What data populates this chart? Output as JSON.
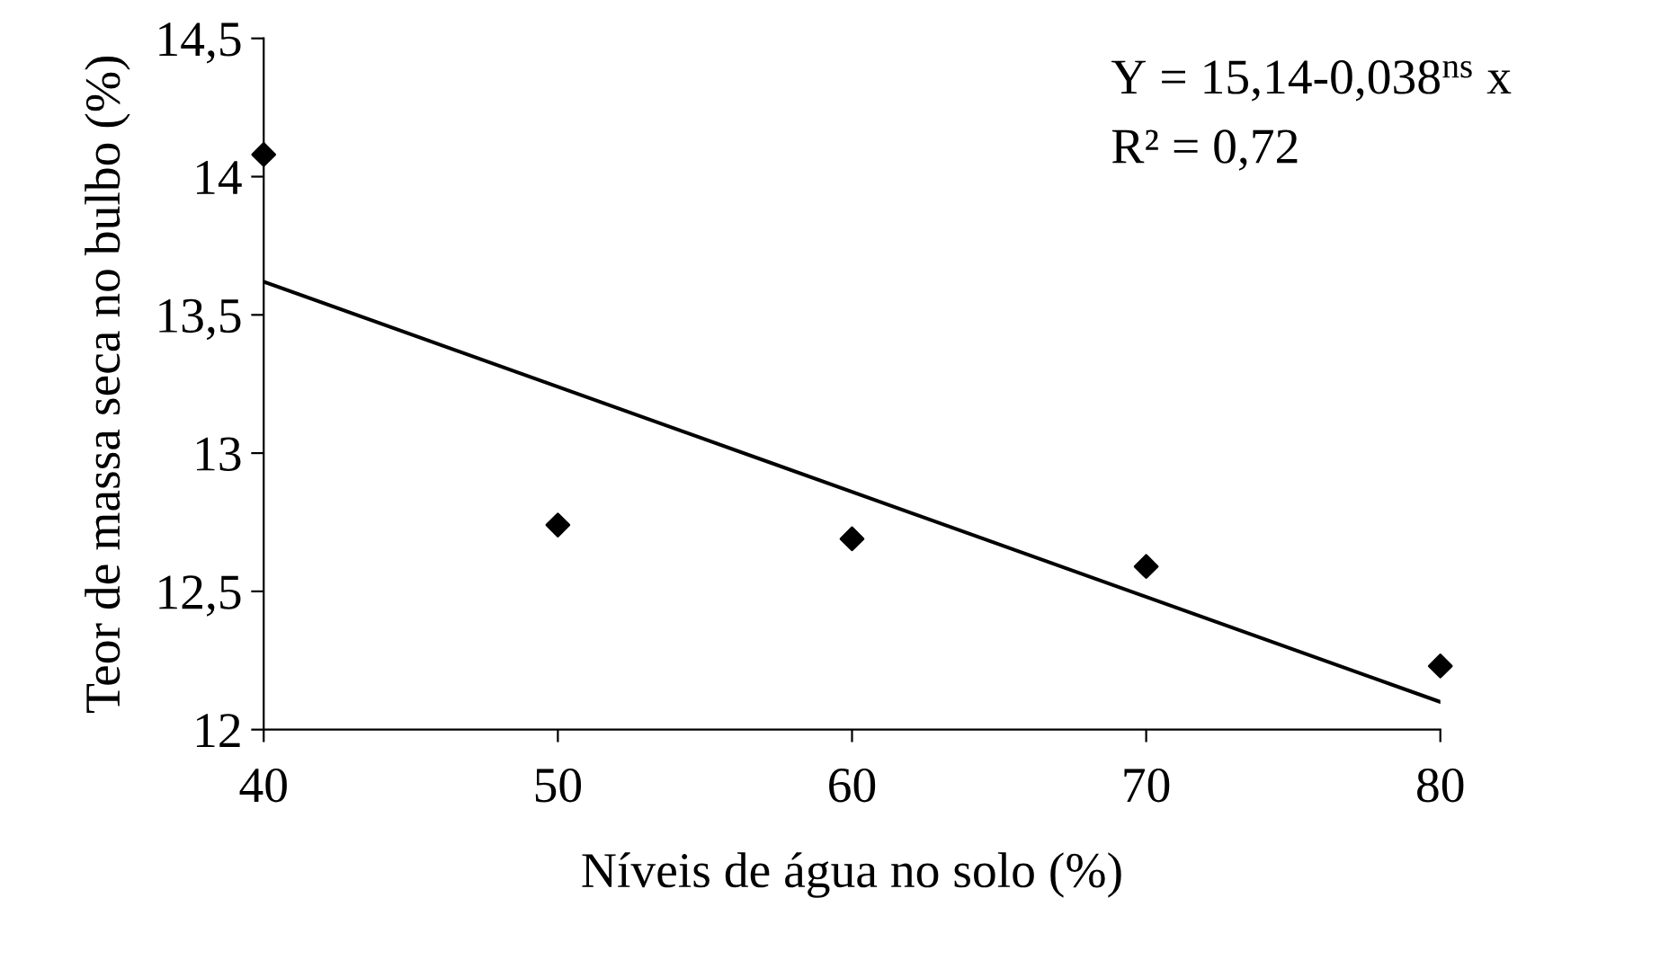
{
  "chart_data": {
    "type": "scatter",
    "xlabel": "Níveis de água no solo (%)",
    "ylabel": "Teor de massa seca no bulbo (%)",
    "annotations": [
      "Y = 15,14-0,038$^{ns}$ x",
      "R² = 0,72"
    ],
    "series": [
      {
        "color": "#000000",
        "marker": "diamond",
        "x": [
          40,
          50,
          60,
          70,
          80
        ],
        "values": [
          14.08,
          12.74,
          12.69,
          12.59,
          12.23
        ]
      },
      {
        "type": "line",
        "color": "#000000",
        "marker": "none",
        "line_style": "solid",
        "x": [
          40,
          80
        ],
        "values": [
          13.62,
          12.1
        ]
      }
    ],
    "xlim": [
      40,
      80
    ],
    "xticks": [
      40,
      50,
      60,
      70,
      80
    ],
    "ylim": [
      12,
      14.5
    ],
    "yticks": [
      12,
      {
        "value": 12.5,
        "label": "12,5"
      },
      13,
      {
        "value": 13.5,
        "label": "13,5"
      },
      14,
      {
        "value": 14.5,
        "label": "14,5"
      }
    ],
    "grid": false,
    "legend": false
  }
}
